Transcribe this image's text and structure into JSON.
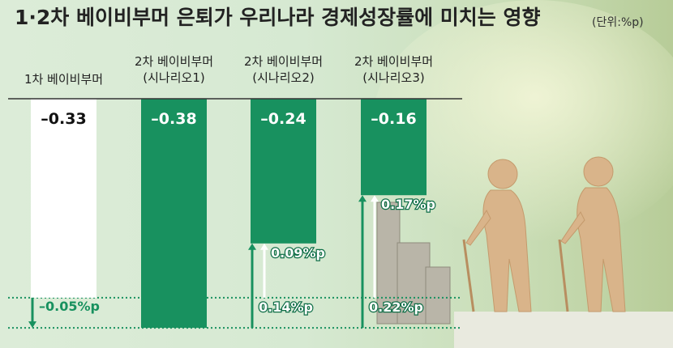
{
  "chart_data": {
    "type": "bar",
    "title": "1·2차 베이비부머 은퇴가 우리나라 경제성장률에 미치는 영향",
    "unit": "(단위:%p)",
    "categories": [
      "1차 베이비부머",
      "2차 베이비부머\n(시나리오1)",
      "2차 베이비부머\n(시나리오2)",
      "2차 베이비부머\n(시나리오3)"
    ],
    "values": [
      -0.33,
      -0.38,
      -0.24,
      -0.16
    ],
    "value_labels": [
      "–0.33",
      "–0.38",
      "–0.24",
      "–0.16"
    ],
    "colors": [
      "#ffffff",
      "#18915f",
      "#18915f",
      "#18915f"
    ],
    "ylim": [
      -0.4,
      0
    ],
    "annotations": [
      {
        "value": -0.05,
        "label": "–0.05%p"
      },
      {
        "value": 0.09,
        "label": "0.09%p"
      },
      {
        "value": 0.14,
        "label": "0.14%p"
      },
      {
        "value": 0.17,
        "label": "0.17%p"
      },
      {
        "value": 0.22,
        "label": "0.22%p"
      }
    ]
  }
}
